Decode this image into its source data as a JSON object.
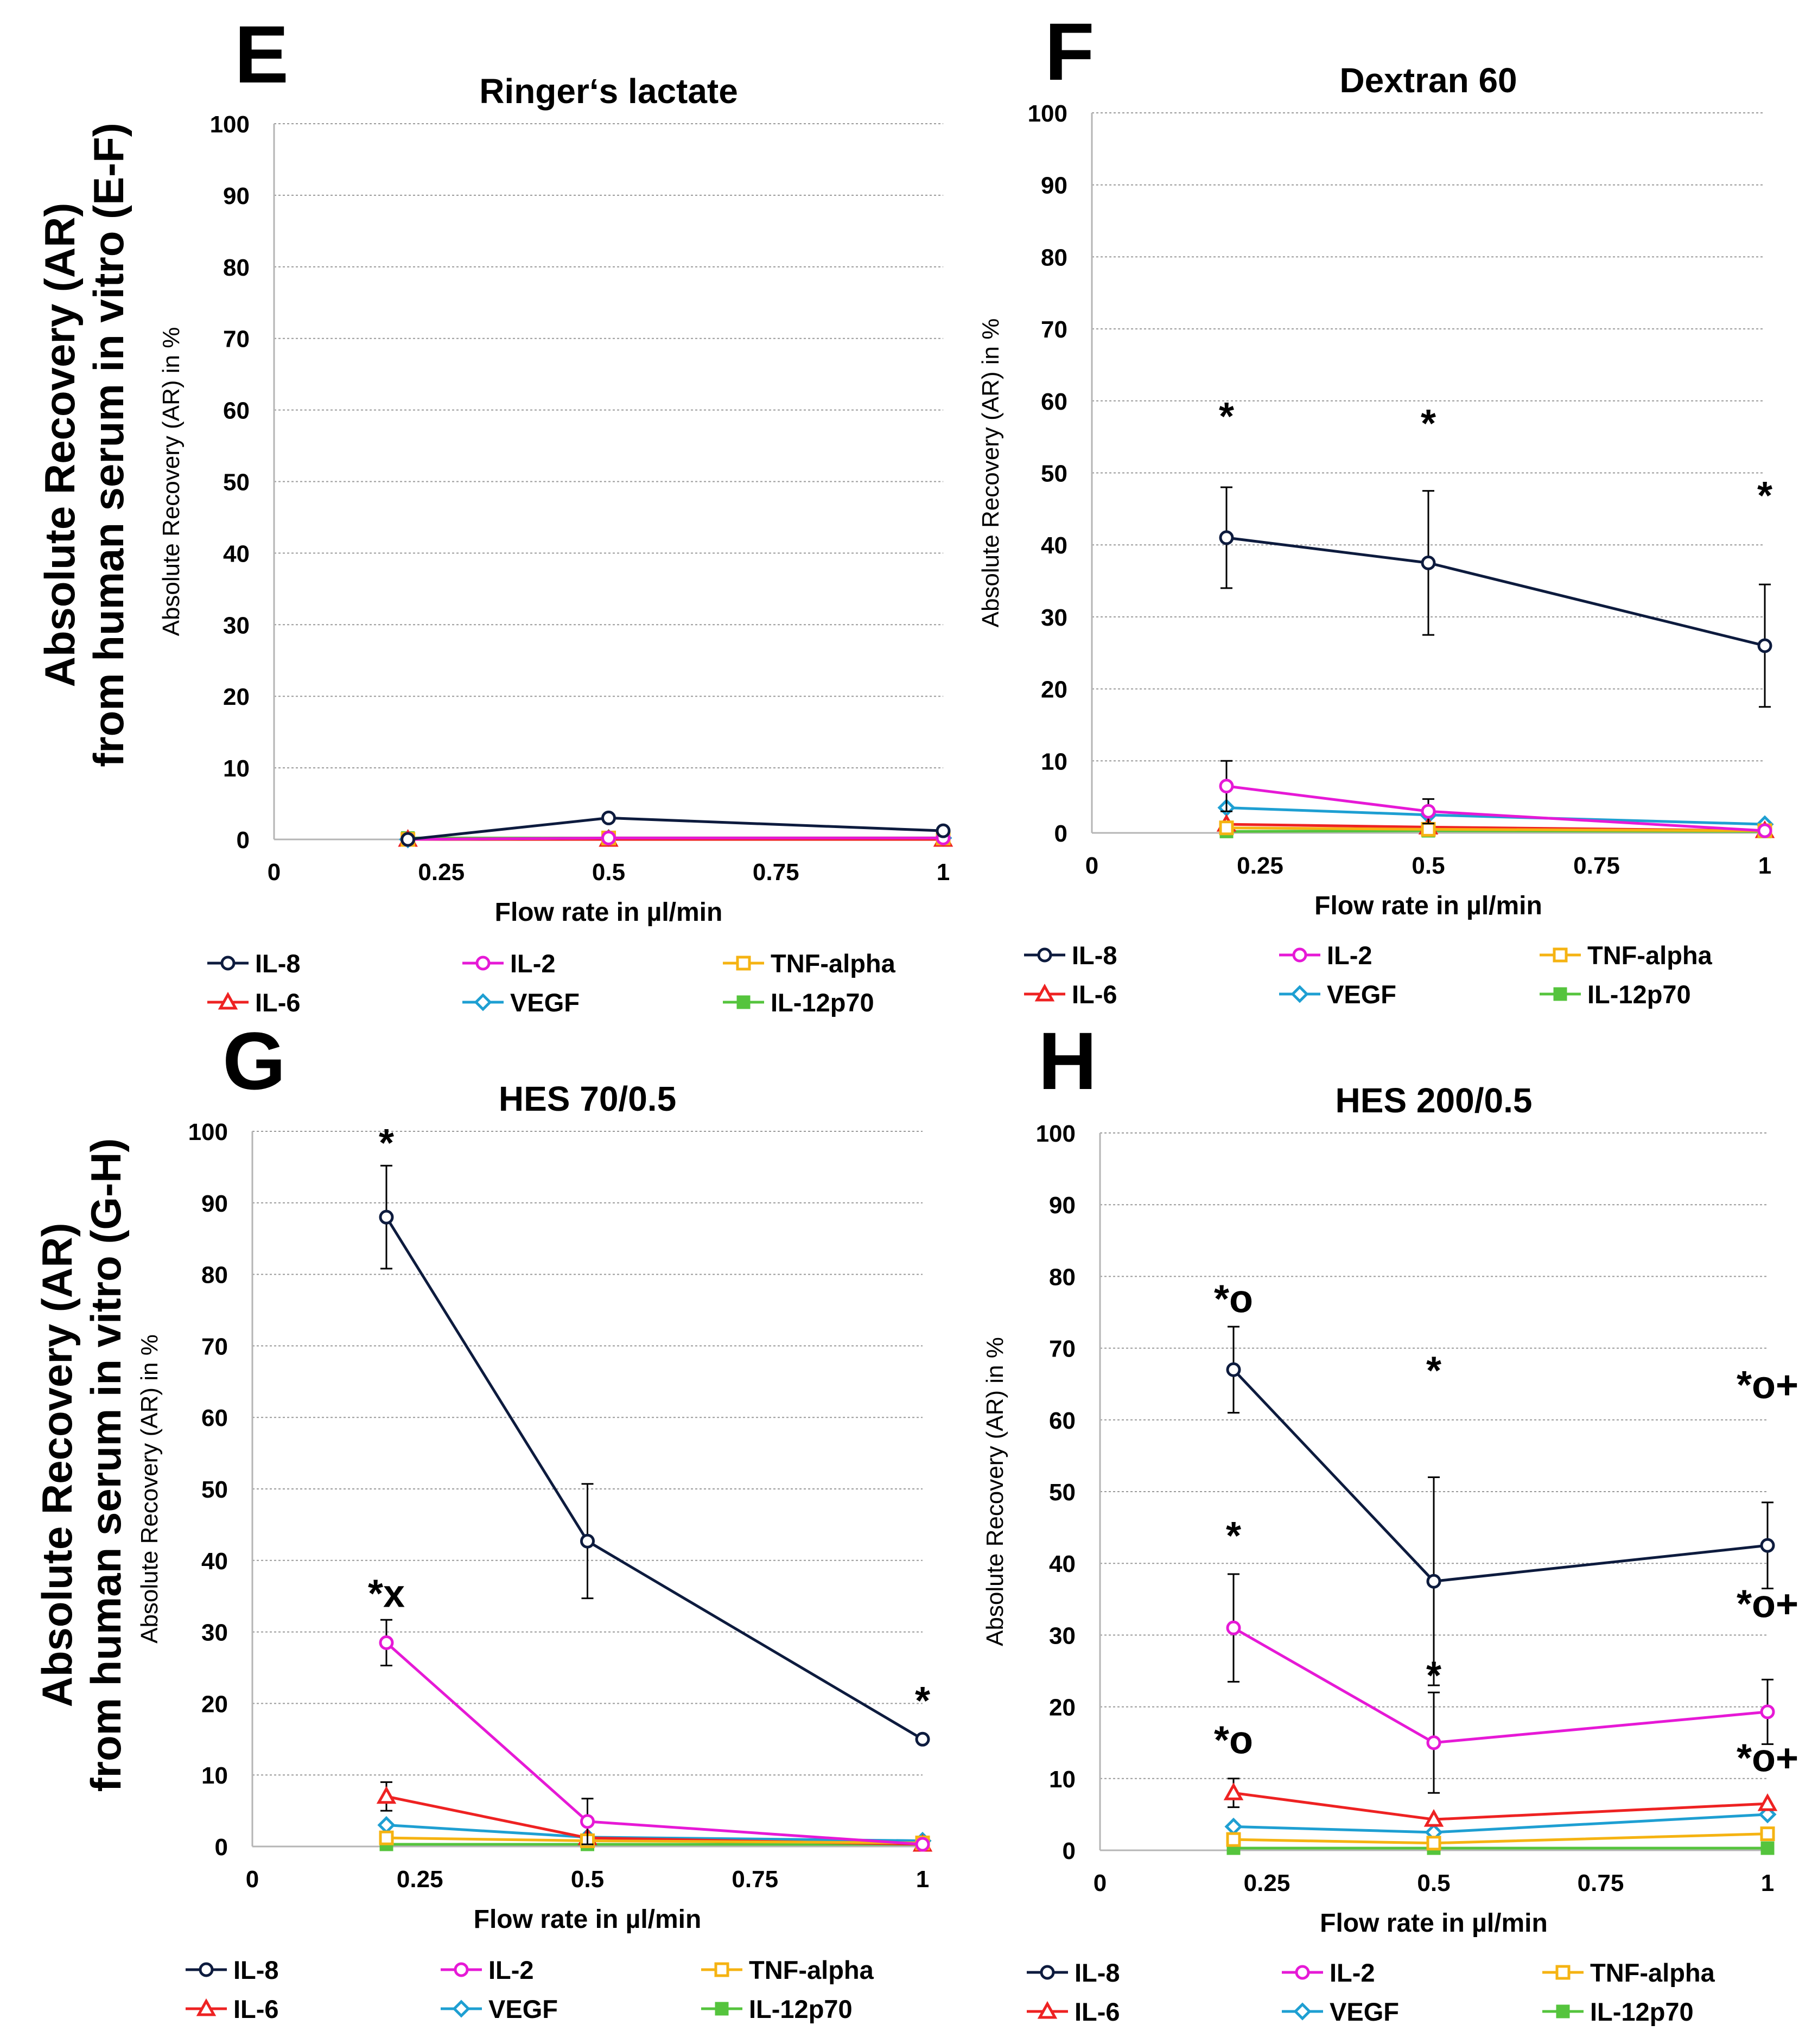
{
  "figure": {
    "side_labels": [
      "Absolute Recovery (AR)\nfrom human serum in vitro (E-F)",
      "Absolute Recovery (AR)\nfrom human serum in vitro (G-H)"
    ]
  },
  "series_styles": [
    {
      "name": "IL-8",
      "color": "#0d1b3e",
      "marker": "circle"
    },
    {
      "name": "IL-2",
      "color": "#e619d6",
      "marker": "circle"
    },
    {
      "name": "TNF-alpha",
      "color": "#f5b312",
      "marker": "square"
    },
    {
      "name": "IL-6",
      "color": "#ee2222",
      "marker": "triangle"
    },
    {
      "name": "VEGF",
      "color": "#1e9fd2",
      "marker": "diamond"
    },
    {
      "name": "IL-12p70",
      "color": "#55c43d",
      "marker": "filled-square"
    }
  ],
  "chart_data": [
    {
      "panel": "E",
      "type": "line",
      "title": "Ringer‘s lactate",
      "xlabel": "Flow rate in µl/min",
      "ylabel": "Absolute Recovery (AR) in %",
      "xlim": [
        0,
        1
      ],
      "ylim": [
        0,
        100
      ],
      "xticks": [
        "0",
        "0.25",
        "0.5",
        "0.75",
        "1"
      ],
      "yticks": [
        "0",
        "10",
        "20",
        "30",
        "40",
        "50",
        "60",
        "70",
        "80",
        "90",
        "100"
      ],
      "x": [
        0.2,
        0.5,
        1
      ],
      "series": [
        {
          "name": "IL-8",
          "values": [
            0,
            3,
            1.2
          ],
          "errors": [
            0,
            0,
            0
          ]
        },
        {
          "name": "IL-2",
          "values": [
            0,
            0.2,
            0.2
          ],
          "errors": [
            0,
            0,
            0
          ]
        },
        {
          "name": "TNF-alpha",
          "values": [
            0,
            0.2,
            0.2
          ],
          "errors": [
            0,
            0,
            0
          ]
        },
        {
          "name": "IL-6",
          "values": [
            0,
            0,
            0
          ],
          "errors": [
            0,
            0,
            0
          ]
        },
        {
          "name": "VEGF",
          "values": [
            0,
            0.2,
            0.2
          ],
          "errors": [
            0,
            0,
            0
          ]
        },
        {
          "name": "IL-12p70",
          "values": [
            0.2,
            0.2,
            0.2
          ],
          "errors": [
            0,
            0,
            0
          ]
        }
      ],
      "annotations": []
    },
    {
      "panel": "F",
      "type": "line",
      "title": "Dextran 60",
      "xlabel": "Flow rate in µl/min",
      "ylabel": "Absolute Recovery (AR) in %",
      "xlim": [
        0,
        1
      ],
      "ylim": [
        0,
        100
      ],
      "xticks": [
        "0",
        "0.25",
        "0.5",
        "0.75",
        "1"
      ],
      "yticks": [
        "0",
        "10",
        "20",
        "30",
        "40",
        "50",
        "60",
        "70",
        "80",
        "90",
        "100"
      ],
      "x": [
        0.2,
        0.5,
        1
      ],
      "series": [
        {
          "name": "IL-8",
          "values": [
            41,
            37.5,
            26
          ],
          "errors": [
            7,
            10,
            8.5
          ]
        },
        {
          "name": "IL-2",
          "values": [
            6.5,
            3,
            0.3
          ],
          "errors": [
            3.5,
            1.7,
            0
          ]
        },
        {
          "name": "TNF-alpha",
          "values": [
            0.7,
            0.5,
            0.3
          ],
          "errors": [
            0,
            0,
            0
          ]
        },
        {
          "name": "IL-6",
          "values": [
            1.2,
            0.8,
            0.3
          ],
          "errors": [
            0,
            0,
            0
          ]
        },
        {
          "name": "VEGF",
          "values": [
            3.5,
            2.5,
            1.2
          ],
          "errors": [
            0,
            0,
            0
          ]
        },
        {
          "name": "IL-12p70",
          "values": [
            0.2,
            0.3,
            0.2
          ],
          "errors": [
            0,
            0,
            0
          ]
        }
      ],
      "annotations": [
        {
          "x": 0.2,
          "y": 56,
          "text": "*"
        },
        {
          "x": 0.5,
          "y": 55,
          "text": "*"
        },
        {
          "x": 1,
          "y": 45,
          "text": "*"
        }
      ]
    },
    {
      "panel": "G",
      "type": "line",
      "title": "HES 70/0.5",
      "xlabel": "Flow rate in µl/min",
      "ylabel": "Absolute Recovery (AR) in %",
      "xlim": [
        0,
        1
      ],
      "ylim": [
        0,
        100
      ],
      "xticks": [
        "0",
        "0.25",
        "0.5",
        "0.75",
        "1"
      ],
      "yticks": [
        "0",
        "10",
        "20",
        "30",
        "40",
        "50",
        "60",
        "70",
        "80",
        "90",
        "100"
      ],
      "x": [
        0.2,
        0.5,
        1
      ],
      "series": [
        {
          "name": "IL-8",
          "values": [
            88,
            42.7,
            15
          ],
          "errors": [
            7.2,
            8,
            0
          ]
        },
        {
          "name": "IL-2",
          "values": [
            28.5,
            3.5,
            0.3
          ],
          "errors": [
            3.2,
            3.2,
            0
          ]
        },
        {
          "name": "TNF-alpha",
          "values": [
            1.2,
            0.8,
            0.5
          ],
          "errors": [
            0,
            0,
            0
          ]
        },
        {
          "name": "IL-6",
          "values": [
            7,
            1.2,
            0.3
          ],
          "errors": [
            2,
            0,
            0
          ]
        },
        {
          "name": "VEGF",
          "values": [
            3,
            1.3,
            0.8
          ],
          "errors": [
            0,
            0,
            0
          ]
        },
        {
          "name": "IL-12p70",
          "values": [
            0.3,
            0.3,
            0.3
          ],
          "errors": [
            0,
            0,
            0
          ]
        }
      ],
      "annotations": [
        {
          "x": 0.2,
          "y": 96.5,
          "text": "*"
        },
        {
          "x": 0.2,
          "y": 33.5,
          "text": "*x"
        },
        {
          "x": 1,
          "y": 18.5,
          "text": "*"
        }
      ]
    },
    {
      "panel": "H",
      "type": "line",
      "title": "HES 200/0.5",
      "xlabel": "Flow rate in µl/min",
      "ylabel": "Absolute Recovery (AR) in %",
      "xlim": [
        0,
        1
      ],
      "ylim": [
        0,
        100
      ],
      "xticks": [
        "0",
        "0.25",
        "0.5",
        "0.75",
        "1"
      ],
      "yticks": [
        "0",
        "10",
        "20",
        "30",
        "40",
        "50",
        "60",
        "70",
        "80",
        "90",
        "100"
      ],
      "x": [
        0.2,
        0.5,
        1
      ],
      "series": [
        {
          "name": "IL-8",
          "values": [
            67,
            37.5,
            42.5
          ],
          "errors": [
            6,
            14.5,
            6
          ]
        },
        {
          "name": "IL-2",
          "values": [
            31,
            15,
            19.3
          ],
          "errors": [
            7.5,
            7,
            4.5
          ]
        },
        {
          "name": "TNF-alpha",
          "values": [
            1.5,
            1,
            2.3
          ],
          "errors": [
            0,
            0,
            0
          ]
        },
        {
          "name": "IL-6",
          "values": [
            8,
            4.3,
            6.5
          ],
          "errors": [
            2,
            0,
            0
          ]
        },
        {
          "name": "VEGF",
          "values": [
            3.3,
            2.5,
            5
          ],
          "errors": [
            0,
            0,
            0
          ]
        },
        {
          "name": "IL-12p70",
          "values": [
            0.3,
            0.3,
            0.3
          ],
          "errors": [
            0,
            0,
            0
          ]
        }
      ],
      "annotations": [
        {
          "x": 0.2,
          "y": 75,
          "text": "*o"
        },
        {
          "x": 0.5,
          "y": 65,
          "text": "*"
        },
        {
          "x": 1,
          "y": 63,
          "text": "*o+"
        },
        {
          "x": 0.2,
          "y": 42,
          "text": "*"
        },
        {
          "x": 1,
          "y": 32.5,
          "text": "*o+"
        },
        {
          "x": 0.5,
          "y": 22.5,
          "text": "*"
        },
        {
          "x": 0.2,
          "y": 13.5,
          "text": "*o"
        },
        {
          "x": 1,
          "y": 11,
          "text": "*o+"
        }
      ]
    }
  ]
}
